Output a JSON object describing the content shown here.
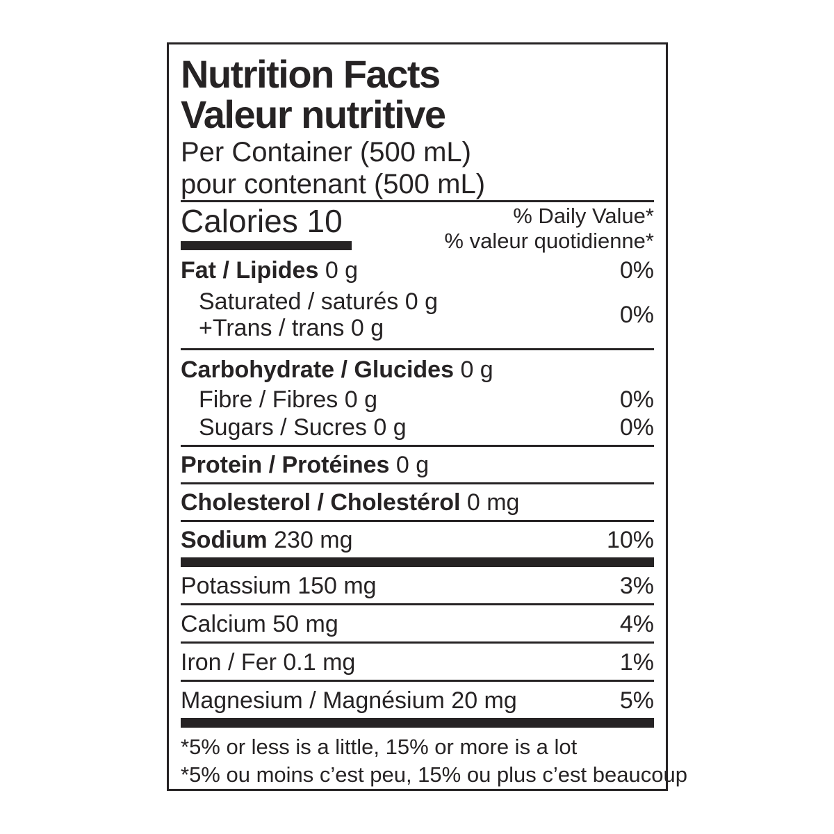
{
  "colors": {
    "ink": "#262324",
    "background": "#ffffff"
  },
  "label": {
    "title_en": "Nutrition Facts",
    "title_fr": "Valeur nutritive",
    "serving_en": "Per Container (500 mL)",
    "serving_fr": "pour contenant (500 mL)",
    "calories": {
      "name": "Calories",
      "value": "10"
    },
    "daily_value_header": {
      "en": "% Daily Value*",
      "fr": "% valeur quotidienne*"
    },
    "nutrients": {
      "fat": {
        "name": "Fat / Lipides",
        "amount": "0 g",
        "dv": "0%"
      },
      "saturated_trans": {
        "line1": "Saturated / saturés 0 g",
        "line2": "+Trans / trans 0 g",
        "dv": "0%"
      },
      "carbohydrate": {
        "name": "Carbohydrate / Glucides",
        "amount": "0 g"
      },
      "fibre": {
        "name": "Fibre / Fibres",
        "amount": "0 g",
        "dv": "0%"
      },
      "sugars": {
        "name": "Sugars / Sucres",
        "amount": "0 g",
        "dv": "0%"
      },
      "protein": {
        "name": "Protein / Protéines",
        "amount": "0 g"
      },
      "cholesterol": {
        "name": "Cholesterol / Cholestérol",
        "amount": "0 mg"
      },
      "sodium": {
        "name": "Sodium",
        "amount": "230 mg",
        "dv": "10%"
      }
    },
    "minerals": [
      {
        "name": "Potassium",
        "amount": "150 mg",
        "dv": "3%"
      },
      {
        "name": "Calcium",
        "amount": "50 mg",
        "dv": "4%"
      },
      {
        "name": "Iron / Fer",
        "amount": "0.1 mg",
        "dv": "1%"
      },
      {
        "name": "Magnesium / Magnésium",
        "amount": "20 mg",
        "dv": "5%"
      }
    ],
    "footnotes": {
      "en": "*5% or less is a little, 15% or more is a lot",
      "fr": "*5% ou moins c’est peu, 15% ou plus c’est beaucoup"
    }
  }
}
